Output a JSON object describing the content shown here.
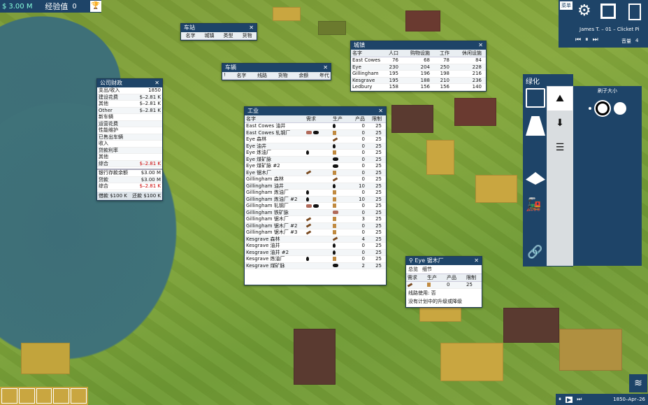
{
  "topbar": {
    "money": "3.00 M",
    "exp_label": "经验值",
    "exp_value": "0"
  },
  "topright": {
    "menu": "菜单",
    "player": "James T. – 01 – Clicket Pi",
    "volume_label": "音量",
    "volume_value": "4"
  },
  "station_win": {
    "title": "车站",
    "cols": [
      "名字",
      "城镇",
      "类型",
      "货物"
    ]
  },
  "vehicle_win": {
    "title": "车辆",
    "cols": [
      "!",
      "名字",
      "线路",
      "货物",
      "余额",
      "年代"
    ]
  },
  "town_win": {
    "title": "城镇",
    "cols": [
      "名字",
      "人口",
      "购物设施",
      "工作",
      "休闲设施"
    ],
    "rows": [
      [
        "East Cowes",
        "76",
        "68",
        "78",
        "84"
      ],
      [
        "Eye",
        "230",
        "204",
        "250",
        "228"
      ],
      [
        "Gillingham",
        "195",
        "196",
        "198",
        "216"
      ],
      [
        "Kesgrave",
        "195",
        "188",
        "210",
        "236"
      ],
      [
        "Ledbury",
        "158",
        "156",
        "156",
        "140"
      ]
    ]
  },
  "finance_win": {
    "title": "公司财政",
    "rows": [
      [
        "支出/收入",
        "1850"
      ],
      [
        "建设花费",
        "$–2.81 K"
      ],
      [
        "其他",
        "$–2.81 K"
      ],
      [
        "Other",
        "$–2.81 K"
      ],
      [
        "新车辆",
        ""
      ],
      [
        "运营花费",
        ""
      ],
      [
        "性能维护",
        ""
      ],
      [
        "已售出车辆",
        ""
      ],
      [
        "收入",
        ""
      ],
      [
        "贷款利率",
        ""
      ],
      [
        "其他",
        ""
      ],
      [
        "综合",
        "$–2.81 K"
      ]
    ],
    "bank": [
      [
        "银行存款余额",
        "$3.00 M"
      ],
      [
        "贷款",
        "$3.00 M"
      ],
      [
        "综合",
        "$–2.81 K"
      ]
    ],
    "borrow": "借款 $100 K",
    "repay": "还款 $100 K"
  },
  "industry_win": {
    "title": "工业",
    "cols": [
      "名字",
      "需求",
      "生产",
      "产品",
      "限制"
    ],
    "rows": [
      [
        "East Cowes 油井",
        "",
        "oil",
        "0",
        "25"
      ],
      [
        "East Cowes 轧钢厂",
        "iron coal",
        "box",
        "0",
        "25"
      ],
      [
        "Eye 森林",
        "",
        "wood",
        "0",
        "25"
      ],
      [
        "Eye 油井",
        "",
        "oil",
        "0",
        "25"
      ],
      [
        "Eye 炼油厂",
        "oil",
        "box",
        "0",
        "25"
      ],
      [
        "Eye 煤矿脉",
        "",
        "coal",
        "0",
        "25"
      ],
      [
        "Eye 煤矿脉 #2",
        "",
        "coal",
        "0",
        "25"
      ],
      [
        "Eye 锯木厂",
        "wood",
        "box",
        "0",
        "25"
      ],
      [
        "Gillingham 森林",
        "",
        "wood",
        "0",
        "25"
      ],
      [
        "Gillingham 油井",
        "",
        "oil",
        "10",
        "25"
      ],
      [
        "Gillingham 炼油厂",
        "oil",
        "box",
        "0",
        "25"
      ],
      [
        "Gillingham 炼油厂 #2",
        "oil",
        "box",
        "10",
        "25"
      ],
      [
        "Gillingham 轧钢厂",
        "iron coal",
        "box",
        "0",
        "25"
      ],
      [
        "Gillingham 铁矿脉",
        "",
        "iron",
        "0",
        "25"
      ],
      [
        "Gillingham 锯木厂",
        "wood",
        "box",
        "3",
        "25"
      ],
      [
        "Gillingham 锯木厂 #2",
        "wood",
        "box",
        "0",
        "25"
      ],
      [
        "Gillingham 锯木厂 #3",
        "wood",
        "box",
        "0",
        "25"
      ],
      [
        "Kesgrave 森林",
        "",
        "wood",
        "4",
        "25"
      ],
      [
        "Kesgrave 油井",
        "",
        "oil",
        "0",
        "25"
      ],
      [
        "Kesgrave 油井 #2",
        "",
        "oil",
        "0",
        "25"
      ],
      [
        "Kesgrave 炼油厂",
        "oil",
        "box",
        "0",
        "25"
      ],
      [
        "Kesgrave 煤矿脉",
        "",
        "coal",
        "2",
        "25"
      ]
    ]
  },
  "eye_win": {
    "title": "Eye 锯木厂",
    "tabs": [
      "总览",
      "细节"
    ],
    "cols": [
      "需求",
      "生产",
      "产品",
      "限制"
    ],
    "prod": "0",
    "limit": "25",
    "line_use": "线路使用: 否",
    "upgrade": "没有计划中的升级或降级"
  },
  "green_panel": {
    "title": "绿化",
    "brush_label": "刷子大小"
  },
  "bottomright": {
    "date": "1850–Apr–26"
  }
}
